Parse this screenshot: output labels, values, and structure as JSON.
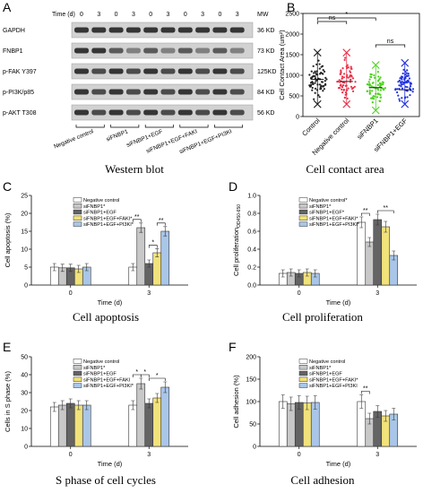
{
  "panels": {
    "A": "A",
    "B": "B",
    "C": "C",
    "D": "D",
    "E": "E",
    "F": "F"
  },
  "captions": {
    "A": "Western blot",
    "B": "Cell contact area",
    "C": "Cell apoptosis",
    "D": "Cell proliferation",
    "E": "S phase of cell cycles",
    "F": "Cell adhesion"
  },
  "western_blot": {
    "time_label": "Time (d)",
    "time_points": [
      "0",
      "3",
      "0",
      "3",
      "0",
      "3",
      "0",
      "3",
      "0",
      "3"
    ],
    "mw_label": "MW",
    "rows": [
      {
        "name": "GAPDH",
        "mw": "36 KD"
      },
      {
        "name": "FNBP1",
        "mw": "73 KD"
      },
      {
        "name": "p-FAK Y397",
        "mw": "125KD"
      },
      {
        "name": "p-PI3K/p85",
        "mw": "84 KD"
      },
      {
        "name": "p-AKT T308",
        "mw": "56 KD"
      }
    ],
    "groups": [
      "Negative control",
      "siFNBP1",
      "siFNBP1+EGF",
      "siFNBP1+EGF+FAKI",
      "siFNBP1+EGF+PI3KI"
    ]
  },
  "chart_data": [
    {
      "panel": "B",
      "type": "scatter",
      "categories": [
        "Control",
        "Negative control",
        "siFNBP1",
        "siFNBP1+EGF"
      ],
      "ylabel": "Cell Contact Area (um²)",
      "yticks": [
        "0",
        "500",
        "1000",
        "1500",
        "2000",
        "2500"
      ],
      "ylim": [
        0,
        2500
      ],
      "colors": [
        "#222222",
        "#e8324a",
        "#4cd21e",
        "#2233dd"
      ],
      "medians": [
        900,
        850,
        700,
        650
      ],
      "mins": [
        300,
        300,
        150,
        300
      ],
      "maxs": [
        1550,
        1550,
        1250,
        1300
      ],
      "significance": [
        "ns",
        "*",
        "ns"
      ]
    },
    {
      "panel": "C",
      "type": "bar",
      "ylabel": "Cell apoptosis (%)",
      "xlabel": "Time (d)",
      "ylim": [
        0,
        25
      ],
      "yticks": [
        "0",
        "5",
        "10",
        "15",
        "20",
        "25"
      ],
      "categories": [
        "0",
        "3"
      ],
      "series": [
        {
          "name": "Negative control",
          "values": [
            5,
            5
          ],
          "errors": [
            1,
            1
          ]
        },
        {
          "name": "siFNBP1*",
          "values": [
            4.8,
            16
          ],
          "errors": [
            1,
            1.3
          ]
        },
        {
          "name": "siFNBP1+EGF",
          "values": [
            4.8,
            6
          ],
          "errors": [
            1,
            1
          ]
        },
        {
          "name": "siFNBP1+EGF+FAKI*",
          "values": [
            4.5,
            9
          ],
          "errors": [
            1,
            1.1
          ]
        },
        {
          "name": "siFNBP1+EGF+PI3KI*",
          "values": [
            5,
            15
          ],
          "errors": [
            1,
            1.3
          ]
        }
      ],
      "significance": [
        "**",
        "**",
        "*"
      ]
    },
    {
      "panel": "D",
      "type": "bar",
      "ylabel": "Cell proliferation",
      "ylabel_sub": "OD450-650",
      "xlabel": "Time (d)",
      "ylim": [
        0,
        1.0
      ],
      "yticks": [
        "0.0",
        "0.2",
        "0.4",
        "0.6",
        "0.8",
        "1.0"
      ],
      "categories": [
        "0",
        "3"
      ],
      "series": [
        {
          "name": "Negative control*",
          "values": [
            0.13,
            0.7
          ],
          "errors": [
            0.04,
            0.06
          ]
        },
        {
          "name": "siFNBP1*",
          "values": [
            0.14,
            0.48
          ],
          "errors": [
            0.04,
            0.05
          ]
        },
        {
          "name": "siFNBP1+EGF*",
          "values": [
            0.13,
            0.73
          ],
          "errors": [
            0.04,
            0.06
          ]
        },
        {
          "name": "siFNBP1+EGF+FAKI*",
          "values": [
            0.14,
            0.65
          ],
          "errors": [
            0.04,
            0.06
          ]
        },
        {
          "name": "siFNBP1+EGF+PI3KI*",
          "values": [
            0.13,
            0.33
          ],
          "errors": [
            0.04,
            0.05
          ]
        }
      ],
      "significance": [
        "**",
        "**"
      ]
    },
    {
      "panel": "E",
      "type": "bar",
      "ylabel": "Cells in S phase (%)",
      "xlabel": "Time (d)",
      "ylim": [
        0,
        50
      ],
      "yticks": [
        "0",
        "10",
        "20",
        "30",
        "40",
        "50"
      ],
      "categories": [
        "0",
        "3"
      ],
      "series": [
        {
          "name": "Negative control",
          "values": [
            22,
            23
          ],
          "errors": [
            2.5,
            2.5
          ]
        },
        {
          "name": "siFNBP1*",
          "values": [
            23,
            35
          ],
          "errors": [
            2.5,
            3
          ]
        },
        {
          "name": "siFNBP1+EGF",
          "values": [
            24,
            24
          ],
          "errors": [
            2.5,
            2.5
          ]
        },
        {
          "name": "siFNBP1+EGF+FAKI",
          "values": [
            23,
            27
          ],
          "errors": [
            2.5,
            2.5
          ]
        },
        {
          "name": "siFNBP1+EGF+PI3KI*",
          "values": [
            23,
            33
          ],
          "errors": [
            2.5,
            3
          ]
        }
      ],
      "significance": [
        "*",
        "*",
        "*"
      ]
    },
    {
      "panel": "F",
      "type": "bar",
      "ylabel": "Cell adhesion (%)",
      "xlabel": "Time (d)",
      "ylim": [
        0,
        200
      ],
      "yticks": [
        "0",
        "50",
        "100",
        "150",
        "200"
      ],
      "categories": [
        "0",
        "3"
      ],
      "series": [
        {
          "name": "Negative control",
          "values": [
            100,
            100
          ],
          "errors": [
            15,
            15
          ]
        },
        {
          "name": "siFNBP1*",
          "values": [
            95,
            62
          ],
          "errors": [
            15,
            12
          ]
        },
        {
          "name": "siFNBP1+EGF",
          "values": [
            98,
            78
          ],
          "errors": [
            15,
            13
          ]
        },
        {
          "name": "siFNBP1+EGF+FAKI*",
          "values": [
            97,
            68
          ],
          "errors": [
            15,
            12
          ]
        },
        {
          "name": "siFNBP1+EGF+PI3KI",
          "values": [
            98,
            72
          ],
          "errors": [
            15,
            13
          ]
        }
      ],
      "significance": [
        "**"
      ]
    }
  ],
  "bar_colors": [
    "#ffffff",
    "#c8c8c8",
    "#646464",
    "#f2e27a",
    "#a9c6e8"
  ]
}
